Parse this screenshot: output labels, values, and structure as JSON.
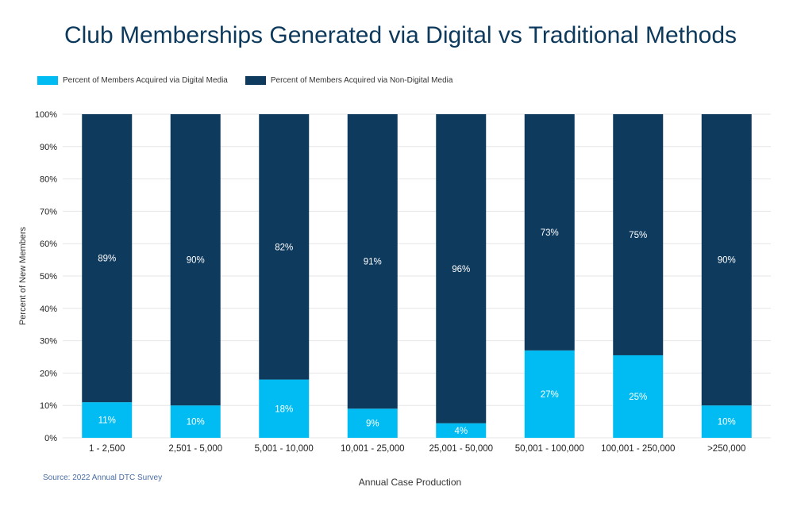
{
  "colors": {
    "digital": "#00bcf2",
    "non_digital": "#0e3a5e",
    "title": "#0d3a5c",
    "grid": "#e6e6e6"
  },
  "chart_data": {
    "type": "bar",
    "stacked": true,
    "title": "Club Memberships Generated via Digital vs Traditional Methods",
    "xlabel": "Annual Case Production",
    "ylabel": "Percent of New Members",
    "ylim": [
      0,
      100
    ],
    "yticks": [
      "0%",
      "10%",
      "20%",
      "30%",
      "40%",
      "50%",
      "60%",
      "70%",
      "80%",
      "90%",
      "100%"
    ],
    "legend_position": "top-left",
    "categories": [
      "1 - 2,500",
      "2,501 - 5,000",
      "5,001 - 10,000",
      "10,001 - 25,000",
      "25,001 - 50,000",
      "50,001 - 100,000",
      "100,001 - 250,000",
      ">250,000"
    ],
    "series": [
      {
        "name": "Percent of Members Acquired via Digital Media",
        "values": [
          11,
          10,
          18,
          9,
          4.5,
          27,
          25.5,
          10
        ],
        "labels": [
          "11%",
          "10%",
          "18%",
          "9%",
          "4%",
          "27%",
          "25%",
          "10%"
        ]
      },
      {
        "name": "Percent of Members Acquired via Non-Digital Media",
        "values": [
          89,
          90,
          82,
          91,
          95.5,
          73,
          74.5,
          90
        ],
        "labels": [
          "89%",
          "90%",
          "82%",
          "91%",
          "96%",
          "73%",
          "75%",
          "90%"
        ]
      }
    ],
    "source": "Source: 2022 Annual DTC Survey"
  }
}
